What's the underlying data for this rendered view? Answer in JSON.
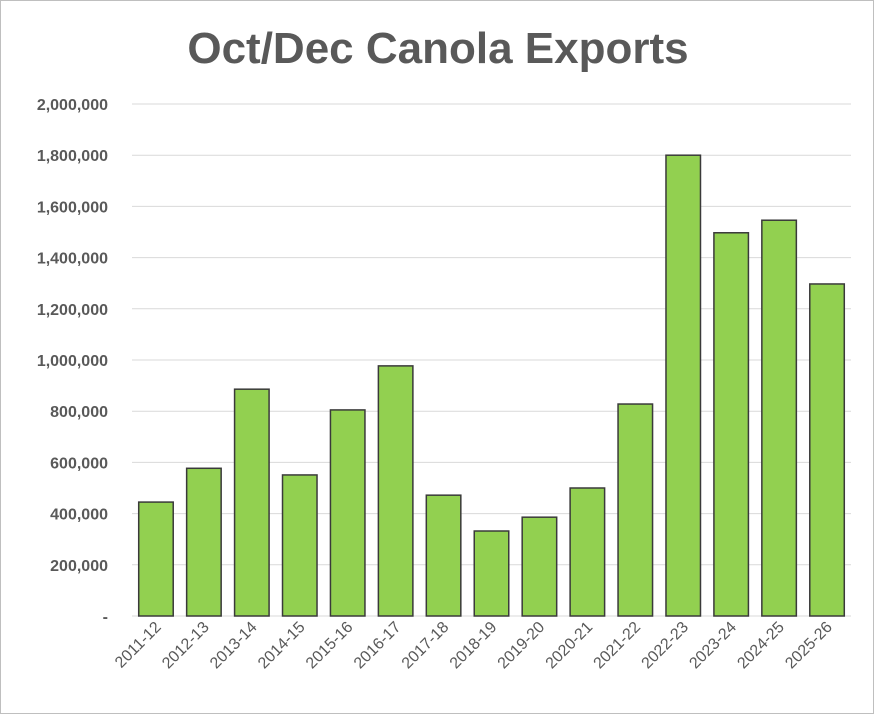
{
  "chart_data": {
    "type": "bar",
    "title": "Oct/Dec Canola Exports",
    "xlabel": "",
    "ylabel": "",
    "categories": [
      "2011-12",
      "2012-13",
      "2013-14",
      "2014-15",
      "2015-16",
      "2016-17",
      "2017-18",
      "2018-19",
      "2019-20",
      "2020-21",
      "2021-22",
      "2022-23",
      "2023-24",
      "2024-25",
      "2025-26"
    ],
    "values": [
      445000,
      577000,
      886000,
      551000,
      805000,
      977000,
      472000,
      332000,
      386000,
      500000,
      828000,
      1800000,
      1497000,
      1546000,
      1297000
    ],
    "ylim": [
      0,
      2000000
    ],
    "yticks": [
      0,
      200000,
      400000,
      600000,
      800000,
      1000000,
      1200000,
      1400000,
      1600000,
      1800000,
      2000000
    ],
    "ytick_labels": [
      "-",
      "200,000",
      "400,000",
      "600,000",
      "800,000",
      "1,000,000",
      "1,200,000",
      "1,400,000",
      "1,600,000",
      "1,800,000",
      "2,000,000"
    ],
    "grid": true,
    "legend": "none",
    "bar_color": "#92d050"
  }
}
